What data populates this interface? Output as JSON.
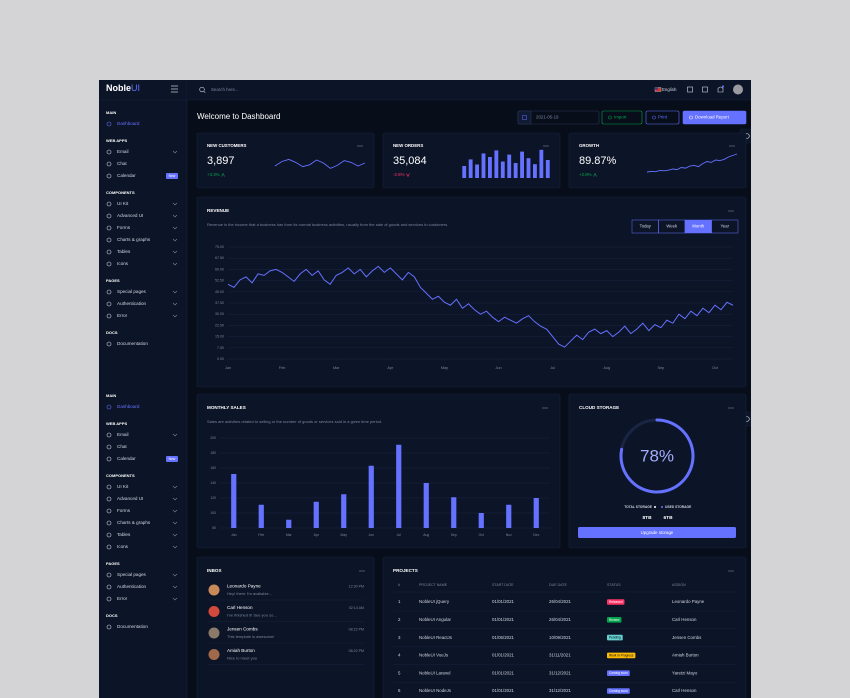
{
  "sidebar": {
    "logo": {
      "main": "Noble",
      "accent": "UI"
    },
    "sections": [
      {
        "title": "MAIN",
        "items": [
          {
            "label": "Dashboard",
            "active": true
          }
        ]
      },
      {
        "title": "WEB APPS",
        "items": [
          {
            "label": "Email",
            "submenu": true
          },
          {
            "label": "Chat"
          },
          {
            "label": "Calendar",
            "badge": "New"
          }
        ]
      },
      {
        "title": "COMPONENTS",
        "items": [
          {
            "label": "UI Kit",
            "submenu": true
          },
          {
            "label": "Advanced UI",
            "submenu": true
          },
          {
            "label": "Forms",
            "submenu": true
          },
          {
            "label": "Charts & graphs",
            "submenu": true
          },
          {
            "label": "Tables",
            "submenu": true
          },
          {
            "label": "Icons",
            "submenu": true
          }
        ]
      },
      {
        "title": "PAGES",
        "items": [
          {
            "label": "Special pages",
            "submenu": true
          },
          {
            "label": "Authentication",
            "submenu": true
          },
          {
            "label": "Error",
            "submenu": true
          }
        ]
      },
      {
        "title": "DOCS",
        "items": [
          {
            "label": "Documentation"
          }
        ]
      }
    ]
  },
  "header": {
    "search_placeholder": "Search here...",
    "language": "English"
  },
  "page": {
    "title": "Welcome to Dashboard",
    "date": "2021-05-19",
    "buttons": [
      "Import",
      "Print",
      "Download Report"
    ]
  },
  "stats": [
    {
      "title": "NEW CUSTOMERS",
      "value": "3,897",
      "change": "+3.3%",
      "trend": "up",
      "chart": {
        "type": "line",
        "ylim": [
          0,
          100
        ],
        "values": [
          40,
          55,
          62,
          52,
          38,
          44,
          60,
          50,
          32,
          42,
          58,
          52,
          40,
          50
        ]
      }
    },
    {
      "title": "NEW ORDERS",
      "value": "35,084",
      "change": "-2.8%",
      "trend": "down",
      "chart": {
        "type": "bar",
        "ylim": [
          0,
          100
        ],
        "values": [
          40,
          62,
          45,
          82,
          70,
          92,
          55,
          78,
          50,
          88,
          66,
          46,
          94,
          60
        ]
      }
    },
    {
      "title": "GROWTH",
      "value": "89.87%",
      "change": "+2.8%",
      "trend": "up",
      "chart": {
        "type": "line",
        "ylim": [
          0,
          100
        ],
        "values": [
          20,
          22,
          21,
          25,
          24,
          26,
          30,
          28,
          35,
          33,
          40,
          42,
          38,
          48,
          55,
          52,
          60,
          58,
          62,
          70,
          75,
          80
        ]
      }
    }
  ],
  "revenue": {
    "title": "REVENUE",
    "description": "Revenue is the income that a business has from its normal business activities, usually from the sale of goods and services to customers.",
    "ranges": [
      "Today",
      "Week",
      "Month",
      "Year"
    ],
    "active_range": "Month",
    "chart": {
      "type": "line",
      "color": "#6571ff",
      "grid": true,
      "values": [
        50,
        48,
        53,
        55,
        51,
        57,
        56,
        59,
        60,
        58,
        55,
        52,
        57,
        60,
        56,
        59,
        53,
        50,
        56,
        58,
        61,
        57,
        60,
        55,
        59,
        62,
        58,
        61,
        57,
        53,
        58,
        55,
        48,
        44,
        40,
        42,
        38,
        36,
        40,
        34,
        37,
        33,
        30,
        32,
        28,
        25,
        28,
        26,
        24,
        27,
        29,
        25,
        22,
        20,
        15,
        10,
        8,
        12,
        16,
        13,
        18,
        20,
        17,
        19,
        15,
        18,
        22,
        17,
        20,
        24,
        19,
        23,
        21,
        26,
        24,
        30,
        27,
        32,
        29,
        34,
        31,
        36,
        33,
        38,
        36
      ],
      "xlim": [
        0,
        84
      ],
      "xticks": [
        {
          "value": 0,
          "label": "Jan"
        },
        {
          "value": 9,
          "label": "Feb"
        },
        {
          "value": 18,
          "label": "Mar"
        },
        {
          "value": 27,
          "label": "Apr"
        },
        {
          "value": 36,
          "label": "May"
        },
        {
          "value": 45,
          "label": "Jun"
        },
        {
          "value": 54,
          "label": "Jul"
        },
        {
          "value": 63,
          "label": "Aug"
        },
        {
          "value": 72,
          "label": "Sep"
        },
        {
          "value": 81,
          "label": "Oct"
        }
      ],
      "ylim": [
        0,
        75
      ],
      "yticks": [
        {
          "value": 0,
          "label": "0.00"
        },
        {
          "value": 7.5,
          "label": "7.50"
        },
        {
          "value": 15,
          "label": "15.00"
        },
        {
          "value": 22.5,
          "label": "22.50"
        },
        {
          "value": 30,
          "label": "30.00"
        },
        {
          "value": 37.5,
          "label": "37.50"
        },
        {
          "value": 45,
          "label": "45.00"
        },
        {
          "value": 52.5,
          "label": "52.50"
        },
        {
          "value": 60,
          "label": "60.00"
        },
        {
          "value": 67.5,
          "label": "67.50"
        },
        {
          "value": 75,
          "label": "75.00"
        }
      ]
    }
  },
  "monthly_sales": {
    "title": "MONTHLY SALES",
    "description": "Sales are activities related to selling or the number of goods or services sold in a given time period.",
    "chart": {
      "type": "bar",
      "color": "#6571ff",
      "grid": true,
      "categories": [
        "Jan",
        "Feb",
        "Mar",
        "Apr",
        "May",
        "Jun",
        "Jul",
        "Aug",
        "Sep",
        "Oct",
        "Nov",
        "Dec"
      ],
      "values": [
        152,
        111,
        91,
        115,
        125,
        163,
        191,
        140,
        121,
        100,
        111,
        120
      ],
      "ylim": [
        80,
        200
      ],
      "yticks": [
        80,
        100,
        120,
        140,
        160,
        180,
        200
      ]
    }
  },
  "cloud": {
    "title": "CLOUD STORAGE",
    "chart": {
      "type": "radial",
      "color": "#6571ff",
      "ylim": [
        0,
        100
      ],
      "value": 78,
      "value_label": "78%"
    },
    "legend": [
      "TOTAL STORAGE",
      "USED STORAGE"
    ],
    "amounts": [
      "8TB",
      "6TB"
    ],
    "button": "Upgrade storage"
  },
  "inbox": {
    "title": "INBOX",
    "messages": [
      {
        "name": "Leonardo Payne",
        "time": "12:30 PM",
        "text": "Hey! there I'm available...",
        "color": "#c98a5a"
      },
      {
        "name": "Carl Henson",
        "time": "02:14 AM",
        "text": "I've finished it! See you so...",
        "color": "#d14a3c"
      },
      {
        "name": "Jensen Combs",
        "time": "08:22 PM",
        "text": "This template is awesome!",
        "color": "#8b7a6a"
      },
      {
        "name": "Amiah Burton",
        "time": "08:22 PM",
        "text": "Nice to meet you",
        "color": "#a06a4a"
      }
    ]
  },
  "projects": {
    "title": "PROJECTS",
    "columns": [
      "#",
      "PROJECT NAME",
      "START DATE",
      "DUE DATE",
      "STATUS",
      "ASSIGN"
    ],
    "rows": [
      {
        "cells": [
          "1",
          "NobleUI jQuery",
          "01/01/2021",
          "26/04/2021"
        ],
        "status": {
          "label": "Released",
          "color": "#ff3366"
        },
        "assign": "Leonardo Payne"
      },
      {
        "cells": [
          "2",
          "NobleUI Angular",
          "01/01/2021",
          "26/04/2021"
        ],
        "status": {
          "label": "Review",
          "color": "#05a34a"
        },
        "assign": "Carl Henson"
      },
      {
        "cells": [
          "3",
          "NobleUI ReactJs",
          "01/05/2021",
          "10/09/2021"
        ],
        "status": {
          "label": "Pending",
          "color": "#66d1d1"
        },
        "assign": "Jensen Combs"
      },
      {
        "cells": [
          "4",
          "NobleUI VueJs",
          "01/01/2021",
          "31/11/2021"
        ],
        "status": {
          "label": "Work in Progress",
          "color": "#fbbc06"
        },
        "assign": "Amiah Burton"
      },
      {
        "cells": [
          "5",
          "NobleUI Laravel",
          "01/01/2021",
          "31/12/2021"
        ],
        "status": {
          "label": "Coming soon",
          "color": "#6571ff"
        },
        "assign": "Yaretzi Mayo"
      },
      {
        "cells": [
          "6",
          "NobleUI NodeJs",
          "01/01/2021",
          "31/12/2021"
        ],
        "status": {
          "label": "Coming soon",
          "color": "#6571ff"
        },
        "assign": "Carl Henson"
      }
    ]
  }
}
